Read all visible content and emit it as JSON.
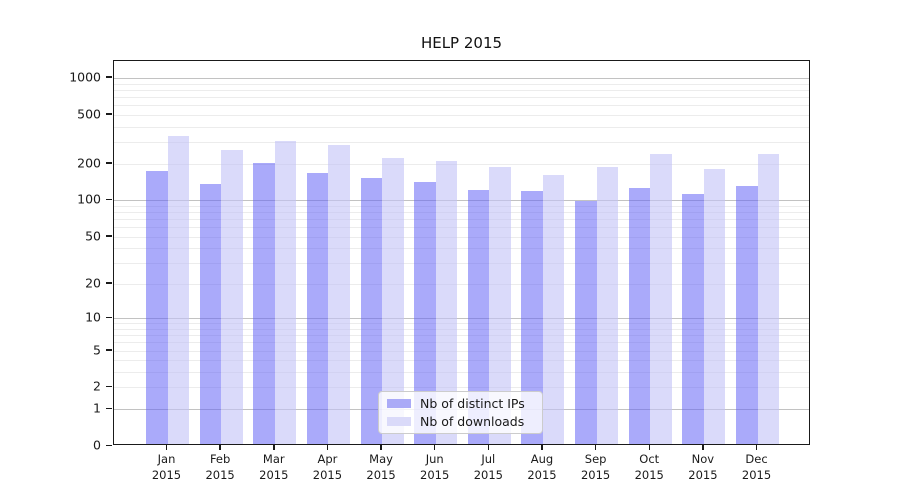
{
  "title": "HELP 2015",
  "legend": {
    "items": [
      {
        "label": "Nb of distinct IPs",
        "color": "#aaaaf7"
      },
      {
        "label": "Nb of downloads",
        "color": "#dadaf9"
      }
    ]
  },
  "axis": {
    "y_tick_labels": [
      "1000",
      "500",
      "200",
      "100",
      "50",
      "20",
      "10",
      "5",
      "2",
      "1",
      "0"
    ],
    "x_months": [
      "Jan",
      "Feb",
      "Mar",
      "Apr",
      "May",
      "Jun",
      "Jul",
      "Aug",
      "Sep",
      "Oct",
      "Nov",
      "Dec"
    ],
    "x_year": "2015"
  },
  "chart_data": {
    "type": "bar",
    "title": "HELP 2015",
    "categories": [
      "Jan 2015",
      "Feb 2015",
      "Mar 2015",
      "Apr 2015",
      "May 2015",
      "Jun 2015",
      "Jul 2015",
      "Aug 2015",
      "Sep 2015",
      "Oct 2015",
      "Nov 2015",
      "Dec 2015"
    ],
    "series": [
      {
        "name": "Nb of distinct IPs",
        "fill": "rgba(100,100,246,0.55)",
        "values": [
          175,
          136,
          203,
          167,
          152,
          141,
          121,
          118,
          98,
          125,
          113,
          132
        ]
      },
      {
        "name": "Nb of downloads",
        "fill": "rgba(193,193,247,0.6)",
        "values": [
          335,
          260,
          305,
          285,
          220,
          208,
          188,
          162,
          188,
          240,
          182,
          240
        ]
      }
    ],
    "yscale": "symlog-log1p",
    "y_ticks": [
      1000,
      500,
      200,
      100,
      50,
      20,
      10,
      5,
      2,
      1,
      0
    ],
    "y_minor_grid": [
      2,
      3,
      4,
      5,
      6,
      7,
      8,
      9,
      20,
      30,
      40,
      50,
      60,
      70,
      80,
      90,
      200,
      300,
      400,
      500,
      600,
      700,
      800,
      900
    ],
    "y_major_grid": [
      1,
      10,
      100,
      1000
    ],
    "ylim": [
      0,
      1376
    ],
    "grid": true,
    "legend_position": "lower center",
    "xlabel": "",
    "ylabel": ""
  }
}
